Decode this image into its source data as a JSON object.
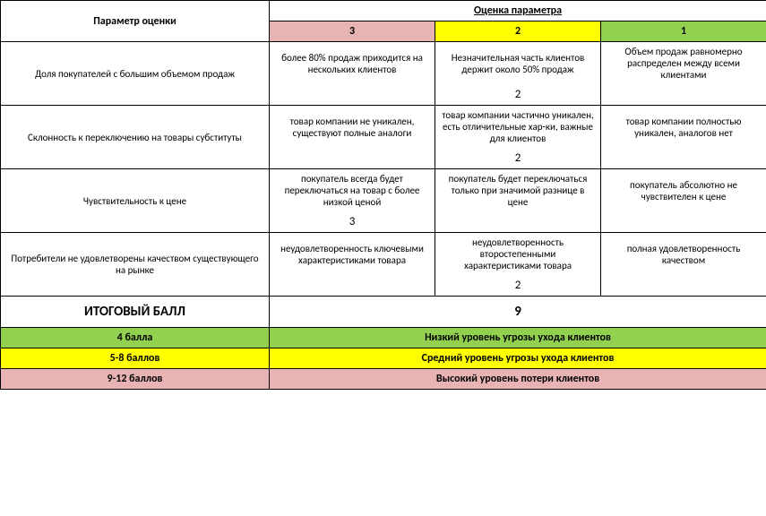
{
  "header": {
    "param_label": "Параметр оценки",
    "scores_label": "Оценка параметра",
    "col3": "3",
    "col2": "2",
    "col1": "1"
  },
  "colors": {
    "pink": "#e8b3b3",
    "yellow": "#ffff00",
    "green": "#92d050",
    "white": "#ffffff",
    "border": "#000000"
  },
  "rows": [
    {
      "param": "Доля покупателей с большим объемом продаж",
      "c3": "более 80% продаж приходится на нескольких клиентов",
      "c2": "Незначительная часть клиентов держит около 50% продаж",
      "c1": "Объем продаж равномерно распределен между всеми клиентами",
      "score_col": 1,
      "score_val": "2"
    },
    {
      "param": "Склонность к переключению на товары субституты",
      "c3": "товар компании не уникален, существуют полные аналоги",
      "c2": "товар компании частично уникален, есть отличительные хар-ки, важные для клиентов",
      "c1": "товар компании полностью уникален, аналогов нет",
      "score_col": 1,
      "score_val": "2"
    },
    {
      "param": "Чувствительность к цене",
      "c3": "покупатель всегда будет переключаться на товар с более низкой ценой",
      "c2": "покупатель будет переключаться только при значимой разнице в цене",
      "c1": "покупатель абсолютно не чувствителен к цене",
      "score_col": 0,
      "score_val": "3"
    },
    {
      "param": "Потребители не удовлетворены качеством существующего на рынке",
      "c3": "неудовлетворенность ключевыми характеристиками товара",
      "c2": "неудовлетворенность второстепенными характеристиками товара",
      "c1": "полная удовлетворенность качеством",
      "score_col": 1,
      "score_val": "2"
    }
  ],
  "total": {
    "label": "ИТОГОВЫЙ БАЛЛ",
    "value": "9"
  },
  "legend": [
    {
      "range": "4 балла",
      "text": "Низкий уровень угрозы ухода клиентов",
      "bg": "#92d050"
    },
    {
      "range": "5-8 баллов",
      "text": "Средний уровень угрозы ухода клиентов",
      "bg": "#ffff00"
    },
    {
      "range": "9-12 баллов",
      "text": "Высокий уровень потери клиентов",
      "bg": "#e8b3b3"
    }
  ]
}
